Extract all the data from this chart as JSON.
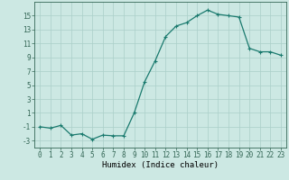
{
  "x": [
    0,
    1,
    2,
    3,
    4,
    5,
    6,
    7,
    8,
    9,
    10,
    11,
    12,
    13,
    14,
    15,
    16,
    17,
    18,
    19,
    20,
    21,
    22,
    23
  ],
  "y": [
    -1.0,
    -1.2,
    -0.8,
    -2.2,
    -2.0,
    -2.8,
    -2.2,
    -2.3,
    -2.3,
    1.0,
    5.5,
    8.5,
    12.0,
    13.5,
    14.0,
    15.0,
    15.8,
    15.2,
    15.0,
    14.8,
    10.3,
    9.8,
    9.8,
    9.3
  ],
  "line_color": "#1a7a6e",
  "marker": "+",
  "marker_size": 3,
  "marker_lw": 0.8,
  "line_width": 0.9,
  "bg_color": "#cce8e3",
  "grid_color": "#aacfc9",
  "axis_color": "#336655",
  "xlabel": "Humidex (Indice chaleur)",
  "xlabel_fontsize": 6.5,
  "ylim": [
    -4,
    17
  ],
  "xlim": [
    -0.5,
    23.5
  ],
  "yticks": [
    -3,
    -1,
    1,
    3,
    5,
    7,
    9,
    11,
    13,
    15
  ],
  "xticks": [
    0,
    1,
    2,
    3,
    4,
    5,
    6,
    7,
    8,
    9,
    10,
    11,
    12,
    13,
    14,
    15,
    16,
    17,
    18,
    19,
    20,
    21,
    22,
    23
  ],
  "xtick_labels": [
    "0",
    "1",
    "2",
    "3",
    "4",
    "5",
    "6",
    "7",
    "8",
    "9",
    "10",
    "11",
    "12",
    "13",
    "14",
    "15",
    "16",
    "17",
    "18",
    "19",
    "20",
    "21",
    "22",
    "23"
  ],
  "ytick_labels": [
    "-3",
    "-1",
    "1",
    "3",
    "5",
    "7",
    "9",
    "11",
    "13",
    "15"
  ],
  "tick_fontsize": 5.5
}
